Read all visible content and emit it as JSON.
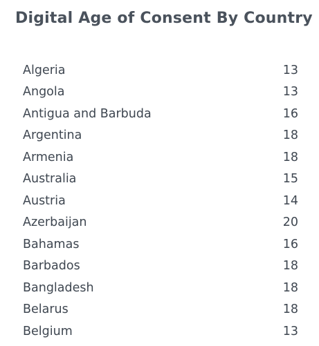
{
  "title": "Digital Age of Consent By Country",
  "table": {
    "rows": [
      [
        "Algeria",
        13
      ],
      [
        "Angola",
        13
      ],
      [
        "Antigua and Barbuda",
        16
      ],
      [
        "Argentina",
        18
      ],
      [
        "Armenia",
        18
      ],
      [
        "Australia",
        15
      ],
      [
        "Austria",
        14
      ],
      [
        "Azerbaijan",
        20
      ],
      [
        "Bahamas",
        16
      ],
      [
        "Barbados",
        18
      ],
      [
        "Bangladesh",
        18
      ],
      [
        "Belarus",
        18
      ],
      [
        "Belgium",
        13
      ]
    ]
  }
}
